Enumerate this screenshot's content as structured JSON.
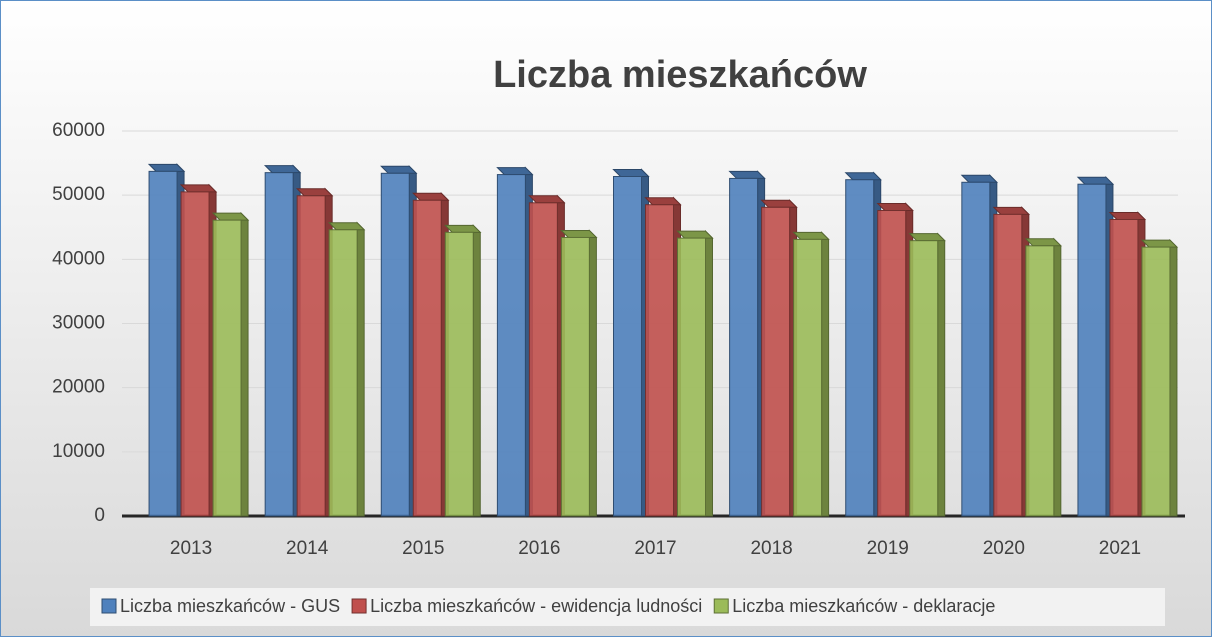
{
  "chart_data": {
    "type": "bar3d",
    "title": "Liczba mieszkańców",
    "categories": [
      "2013",
      "2014",
      "2015",
      "2016",
      "2017",
      "2018",
      "2019",
      "2020",
      "2021"
    ],
    "series": [
      {
        "name": "Liczba mieszkańców - GUS",
        "color": "#4f81bd",
        "values": [
          54800,
          54600,
          54500,
          54300,
          54000,
          53700,
          53500,
          53100,
          52800
        ]
      },
      {
        "name": "Liczba mieszkańców - ewidencja ludności",
        "color": "#c0504d",
        "values": [
          51600,
          51000,
          50300,
          49900,
          49600,
          49200,
          48700,
          48100,
          47300
        ]
      },
      {
        "name": "Liczba mieszkańców - deklaracje",
        "color": "#9bbb59",
        "values": [
          47200,
          45700,
          45300,
          44500,
          44400,
          44200,
          44000,
          43200,
          43000
        ]
      }
    ],
    "ylim": [
      0,
      60000
    ],
    "yticks": [
      0,
      10000,
      20000,
      30000,
      40000,
      50000,
      60000
    ],
    "grid": true,
    "legend": "bottom"
  }
}
